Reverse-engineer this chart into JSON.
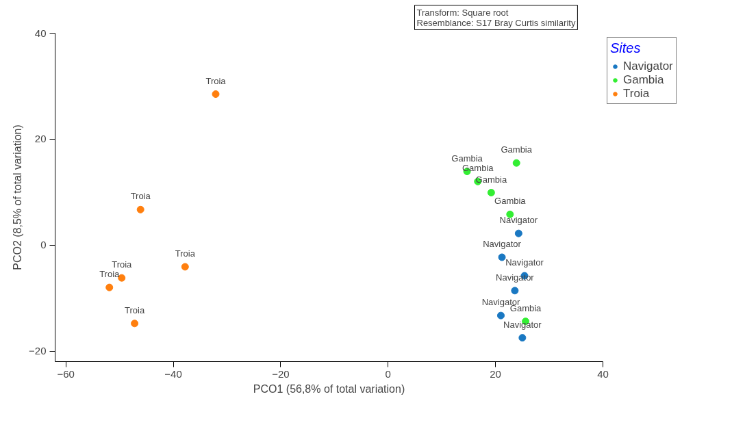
{
  "chart_data": {
    "type": "scatter",
    "xlabel": "PCO1 (56,8% of total variation)",
    "ylabel": "PCO2 (8,5% of total variation)",
    "legend_title": "Sites",
    "legend": "top right",
    "grid": false,
    "marker": "circle",
    "xlim": [
      -62,
      40
    ],
    "ylim": [
      -22,
      40
    ],
    "xticks": [
      -60,
      -40,
      -20,
      0,
      20,
      40
    ],
    "yticks": [
      -20,
      0,
      20,
      40
    ],
    "series": [
      {
        "name": "Navigator",
        "color": "#1a78c2",
        "x": [
          24.3,
          21.2,
          25.4,
          23.6,
          21.0,
          25.0
        ],
        "values": [
          2.2,
          -2.3,
          -5.8,
          -8.6,
          -13.3,
          -17.5
        ]
      },
      {
        "name": "Gambia",
        "color": "#33ee33",
        "x": [
          23.9,
          14.7,
          16.7,
          19.2,
          22.7,
          25.6
        ],
        "values": [
          15.5,
          13.9,
          12.0,
          9.9,
          5.8,
          -14.4
        ]
      },
      {
        "name": "Troia",
        "color": "#ff7f0e",
        "x": [
          -32.1,
          -46.1,
          -37.8,
          -49.6,
          -51.9,
          -47.2
        ],
        "values": [
          28.5,
          6.7,
          -4.1,
          -6.2,
          -8.0,
          -14.8
        ]
      }
    ],
    "annotations": [
      "Transform: Square root",
      "Resemblance: S17 Bray Curtis similarity",
      {
        "text": "Navigator",
        "x": 24.3,
        "y": 2.2
      },
      {
        "text": "Navigator",
        "x": 21.2,
        "y": -2.3
      },
      {
        "text": "Navigator",
        "x": 25.4,
        "y": -5.8
      },
      {
        "text": "Navigator",
        "x": 23.6,
        "y": -8.6
      },
      {
        "text": "Navigator",
        "x": 21.0,
        "y": -13.3
      },
      {
        "text": "Navigator",
        "x": 25.0,
        "y": -17.5
      },
      {
        "text": "Gambia",
        "x": 23.9,
        "y": 15.5
      },
      {
        "text": "Gambia",
        "x": 14.7,
        "y": 13.9
      },
      {
        "text": "Gambia",
        "x": 16.7,
        "y": 12.0
      },
      {
        "text": "Gambia",
        "x": 19.2,
        "y": 9.9
      },
      {
        "text": "Gambia",
        "x": 22.7,
        "y": 5.8
      },
      {
        "text": "Gambia",
        "x": 25.6,
        "y": -14.4
      },
      {
        "text": "Troia",
        "x": -32.1,
        "y": 28.5
      },
      {
        "text": "Troia",
        "x": -46.1,
        "y": 6.7
      },
      {
        "text": "Troia",
        "x": -37.8,
        "y": -4.1
      },
      {
        "text": "Troia",
        "x": -49.6,
        "y": -6.2
      },
      {
        "text": "Troia",
        "x": -51.9,
        "y": -8.0
      },
      {
        "text": "Troia",
        "x": -47.2,
        "y": -14.8
      }
    ]
  }
}
